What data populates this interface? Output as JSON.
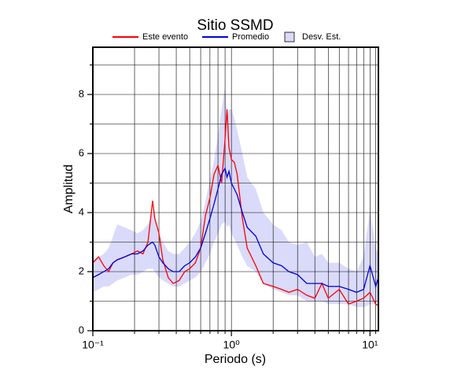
{
  "chart_data": {
    "type": "line",
    "title": "Sitio SSMD",
    "xlabel": "Periodo (s)",
    "ylabel": "Amplitud",
    "xlog": true,
    "grid": true,
    "xlim": [
      0.1,
      11.5
    ],
    "ylim": [
      0,
      9.6
    ],
    "xticks": [
      {
        "value": 0.1,
        "label": "10⁻¹"
      },
      {
        "value": 1,
        "label": "10⁰"
      },
      {
        "value": 10,
        "label": "10¹"
      }
    ],
    "xminor": [
      0.2,
      0.3,
      0.4,
      0.5,
      0.6,
      0.7,
      0.8,
      0.9,
      2,
      3,
      4,
      5,
      6,
      7,
      8,
      9,
      11
    ],
    "yticks": [
      0,
      2,
      4,
      6,
      8
    ],
    "yminor": [
      1,
      3,
      5,
      7,
      9
    ],
    "x": [
      0.1,
      0.11,
      0.12,
      0.13,
      0.14,
      0.15,
      0.17,
      0.19,
      0.21,
      0.23,
      0.25,
      0.27,
      0.28,
      0.3,
      0.32,
      0.35,
      0.38,
      0.42,
      0.46,
      0.5,
      0.55,
      0.6,
      0.65,
      0.7,
      0.75,
      0.8,
      0.85,
      0.9,
      0.93,
      0.96,
      1.0,
      1.05,
      1.1,
      1.2,
      1.3,
      1.5,
      1.7,
      2.0,
      2.3,
      2.6,
      3.0,
      3.5,
      4.0,
      4.5,
      5.0,
      6.0,
      7.0,
      8.0,
      9.0,
      10.0,
      11.0,
      11.5
    ],
    "series": [
      {
        "name": "Este evento",
        "color": "#ff0000",
        "values": [
          2.3,
          2.5,
          2.2,
          2.0,
          2.3,
          2.4,
          2.5,
          2.6,
          2.7,
          2.6,
          3.0,
          4.4,
          3.8,
          3.3,
          2.4,
          1.8,
          1.6,
          1.7,
          2.0,
          2.1,
          2.3,
          2.8,
          3.9,
          4.5,
          5.3,
          5.6,
          5.0,
          6.5,
          7.5,
          6.2,
          5.8,
          5.7,
          5.3,
          3.8,
          2.8,
          2.2,
          1.6,
          1.5,
          1.4,
          1.3,
          1.4,
          1.2,
          1.1,
          1.6,
          1.1,
          1.4,
          0.9,
          1.0,
          1.1,
          1.3,
          0.9,
          0.85
        ]
      },
      {
        "name": "Promedio",
        "color": "#0000dd",
        "values": [
          1.8,
          1.9,
          2.0,
          2.1,
          2.3,
          2.4,
          2.5,
          2.6,
          2.6,
          2.7,
          2.9,
          3.0,
          2.9,
          2.5,
          2.3,
          2.1,
          2.0,
          2.0,
          2.2,
          2.3,
          2.5,
          2.8,
          3.3,
          3.8,
          4.3,
          4.8,
          5.3,
          5.5,
          5.2,
          5.4,
          5.0,
          4.8,
          4.6,
          4.0,
          3.5,
          3.2,
          2.6,
          2.3,
          2.2,
          2.0,
          1.9,
          1.6,
          1.6,
          1.6,
          1.5,
          1.5,
          1.4,
          1.3,
          1.4,
          2.2,
          1.5,
          1.8
        ]
      }
    ],
    "band": {
      "name": "Desv. Est.",
      "color": "#dadafa",
      "lower": [
        1.3,
        1.4,
        1.5,
        1.5,
        1.6,
        1.7,
        1.8,
        1.9,
        1.9,
        2.0,
        2.1,
        2.1,
        2.0,
        1.8,
        1.7,
        1.6,
        1.5,
        1.5,
        1.6,
        1.7,
        1.8,
        2.0,
        2.3,
        2.6,
        3.0,
        3.3,
        3.6,
        3.7,
        3.5,
        3.6,
        3.3,
        3.1,
        2.9,
        2.5,
        2.2,
        2.0,
        1.6,
        1.4,
        1.3,
        1.2,
        1.2,
        1.0,
        1.0,
        1.0,
        0.9,
        0.9,
        0.9,
        0.8,
        0.8,
        0.9,
        0.9,
        1.0
      ],
      "upper": [
        2.4,
        2.5,
        2.6,
        2.8,
        3.2,
        3.6,
        3.5,
        3.4,
        3.3,
        3.4,
        3.6,
        4.0,
        3.9,
        3.3,
        3.0,
        2.7,
        2.6,
        2.6,
        2.8,
        3.0,
        3.3,
        3.7,
        4.4,
        5.1,
        5.8,
        6.6,
        7.5,
        8.3,
        7.2,
        7.5,
        7.5,
        7.2,
        6.8,
        6.0,
        5.2,
        4.8,
        4.0,
        3.6,
        3.4,
        3.0,
        2.9,
        3.0,
        2.5,
        2.6,
        2.3,
        2.3,
        2.1,
        2.0,
        2.5,
        4.1,
        2.8,
        2.6
      ]
    }
  }
}
